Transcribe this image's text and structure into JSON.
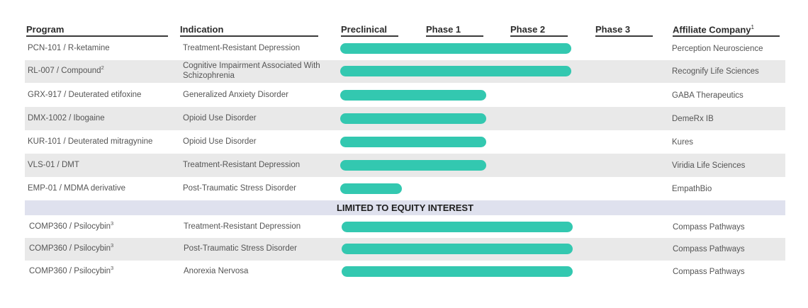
{
  "headers": {
    "program": "Program",
    "indication": "Indication",
    "preclinical": "Preclinical",
    "phase1": "Phase 1",
    "phase2": "Phase 2",
    "phase3": "Phase 3",
    "affiliate": "Affiliate Company",
    "affiliate_note": "1"
  },
  "equity_label": "LIMITED TO EQUITY INTEREST",
  "colors": {
    "bar": "#33c8b0",
    "shade": "#e9e9e9",
    "equity_band": "#dfe1ee"
  },
  "chart_data": {
    "type": "bar",
    "stages": [
      "Preclinical",
      "Phase 1",
      "Phase 2",
      "Phase 3"
    ],
    "value_unit": "development stage (0 = Preclinical start, 4 = Phase 3 end)",
    "rows": [
      {
        "program": "PCN-101 / R-ketamine",
        "note": "",
        "indication": "Treatment-Resistant Depression",
        "affiliate": "Perception Neuroscience",
        "progress": 2.7,
        "section": "main"
      },
      {
        "program": "RL-007 / Compound",
        "note": "2",
        "indication": "Cognitive Impairment Associated With Schizophrenia",
        "affiliate": "Recognify Life Sciences",
        "progress": 2.7,
        "section": "main"
      },
      {
        "program": "GRX-917 / Deuterated etifoxine",
        "note": "",
        "indication": "Generalized Anxiety Disorder",
        "affiliate": "GABA Therapeutics",
        "progress": 1.7,
        "section": "main"
      },
      {
        "program": "DMX-1002 / Ibogaine",
        "note": "",
        "indication": "Opioid Use Disorder",
        "affiliate": "DemeRx IB",
        "progress": 1.7,
        "section": "main"
      },
      {
        "program": "KUR-101 / Deuterated mitragynine",
        "note": "",
        "indication": "Opioid Use Disorder",
        "affiliate": "Kures",
        "progress": 1.7,
        "section": "main"
      },
      {
        "program": "VLS-01 / DMT",
        "note": "",
        "indication": "Treatment-Resistant Depression",
        "affiliate": "Viridia Life Sciences",
        "progress": 1.7,
        "section": "main"
      },
      {
        "program": "EMP-01 / MDMA derivative",
        "note": "",
        "indication": "Post-Traumatic Stress Disorder",
        "affiliate": "EmpathBio",
        "progress": 0.7,
        "section": "main"
      },
      {
        "program": "COMP360 / Psilocybin",
        "note": "3",
        "indication": "Treatment-Resistant Depression",
        "affiliate": "Compass Pathways",
        "progress": 2.7,
        "section": "equity"
      },
      {
        "program": "COMP360 / Psilocybin",
        "note": "3",
        "indication": "Post-Traumatic Stress Disorder",
        "affiliate": "Compass Pathways",
        "progress": 2.7,
        "section": "equity"
      },
      {
        "program": "COMP360 / Psilocybin",
        "note": "3",
        "indication": "Anorexia Nervosa",
        "affiliate": "Compass Pathways",
        "progress": 2.7,
        "section": "equity"
      }
    ]
  }
}
